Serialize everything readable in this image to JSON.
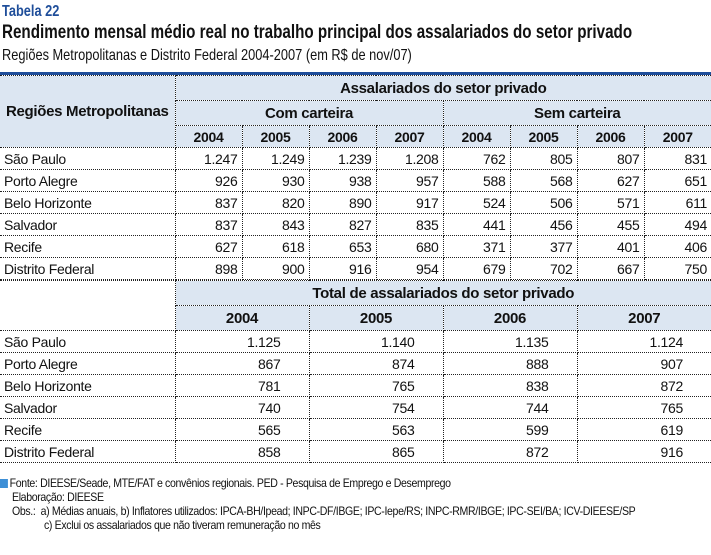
{
  "header": {
    "label": "Tabela 22",
    "title": "Rendimento mensal médio real no trabalho principal dos assalariados do setor privado",
    "subtitle": "Regiões Metropolitanas e Distrito Federal 2004-2007 (em R$ de nov/07)"
  },
  "table1": {
    "region_header": "Regiões Metropolitanas",
    "group_header": "Assalariados do setor privado",
    "sub_headers": [
      "Com carteira",
      "Sem carteira"
    ],
    "years": [
      "2004",
      "2005",
      "2006",
      "2007",
      "2004",
      "2005",
      "2006",
      "2007"
    ],
    "rows": [
      {
        "region": "São Paulo",
        "values": [
          "1.247",
          "1.249",
          "1.239",
          "1.208",
          "762",
          "805",
          "807",
          "831"
        ]
      },
      {
        "region": "Porto Alegre",
        "values": [
          "926",
          "930",
          "938",
          "957",
          "588",
          "568",
          "627",
          "651"
        ]
      },
      {
        "region": "Belo Horizonte",
        "values": [
          "837",
          "820",
          "890",
          "917",
          "524",
          "506",
          "571",
          "611"
        ]
      },
      {
        "region": "Salvador",
        "values": [
          "837",
          "843",
          "827",
          "835",
          "441",
          "456",
          "455",
          "494"
        ]
      },
      {
        "region": "Recife",
        "values": [
          "627",
          "618",
          "653",
          "680",
          "371",
          "377",
          "401",
          "406"
        ]
      },
      {
        "region": "Distrito Federal",
        "values": [
          "898",
          "900",
          "916",
          "954",
          "679",
          "702",
          "667",
          "750"
        ]
      }
    ]
  },
  "table2": {
    "group_header": "Total de assalariados do setor privado",
    "years": [
      "2004",
      "2005",
      "2006",
      "2007"
    ],
    "rows": [
      {
        "region": "São Paulo",
        "values": [
          "1.125",
          "1.140",
          "1.135",
          "1.124"
        ]
      },
      {
        "region": "Porto Alegre",
        "values": [
          "867",
          "874",
          "888",
          "907"
        ]
      },
      {
        "region": "Belo Horizonte",
        "values": [
          "781",
          "765",
          "838",
          "872"
        ]
      },
      {
        "region": "Salvador",
        "values": [
          "740",
          "754",
          "744",
          "765"
        ]
      },
      {
        "region": "Recife",
        "values": [
          "565",
          "563",
          "599",
          "619"
        ]
      },
      {
        "region": "Distrito Federal",
        "values": [
          "858",
          "865",
          "872",
          "916"
        ]
      }
    ]
  },
  "footer": {
    "source": "Fonte: DIEESE/Seade, MTE/FAT e convênios regionais. PED - Pesquisa de Emprego e Desemprego",
    "elaboration": "Elaboração: DIEESE",
    "obs": "Obs.:  a) Médias anuais, b) Inflatores utilizados: IPCA-BH/Ipead; INPC-DF/IBGE; IPC-Iepe/RS; INPC-RMR/IBGE; IPC-SEI/BA; ICV-DIEESE/SP",
    "obs_c": "c) Exclui os assalariados que não tiveram remuneração no mês"
  }
}
